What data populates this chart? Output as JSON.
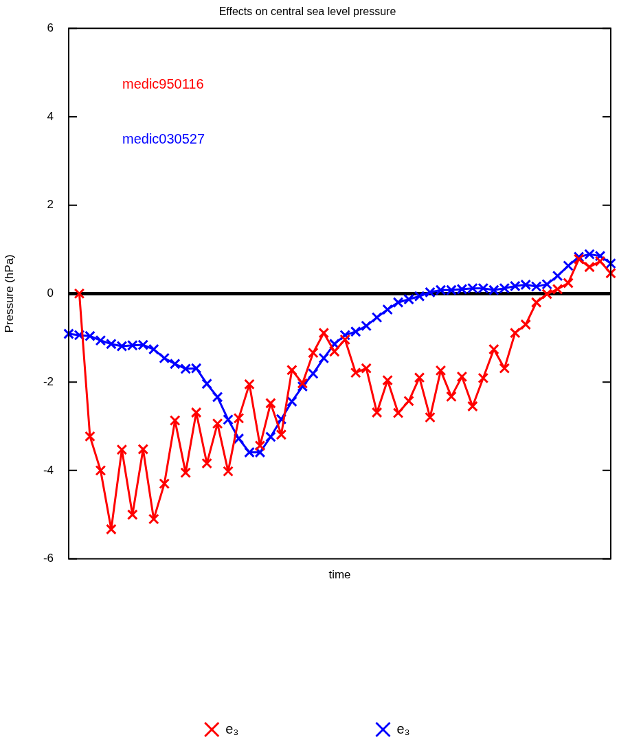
{
  "chart_data": {
    "type": "line",
    "title": "Effects on central sea level pressure",
    "xlabel": "time",
    "ylabel": "Pressure (hPa)",
    "categories": [
      null,
      null,
      null,
      null,
      null,
      null,
      null,
      null,
      null,
      null,
      null,
      null,
      null,
      null,
      null,
      null,
      null,
      null,
      null,
      null,
      null,
      null,
      null,
      null,
      null,
      null,
      null,
      null,
      null,
      null,
      null,
      null,
      null,
      null,
      null,
      null,
      null,
      null,
      null,
      null,
      null,
      null,
      null,
      null,
      null,
      null,
      null,
      null,
      null,
      null,
      null,
      null
    ],
    "series": [
      {
        "name": "e₃",
        "color": "#ff0000",
        "values": [
          null,
          0,
          -3.23,
          -4.0,
          -5.33,
          -3.53,
          -5.0,
          -3.52,
          -5.1,
          -4.3,
          -2.87,
          -4.05,
          -2.69,
          -3.84,
          -2.94,
          -4.02,
          -2.82,
          -2.05,
          -3.44,
          -2.48,
          -3.19,
          -1.73,
          -2.03,
          -1.34,
          -0.89,
          -1.31,
          -1.04,
          -1.79,
          -1.69,
          -2.69,
          -1.96,
          -2.7,
          -2.43,
          -1.9,
          -2.8,
          -1.74,
          -2.33,
          -1.88,
          -2.55,
          -1.91,
          -1.26,
          -1.69,
          -0.89,
          -0.7,
          -0.2,
          -0.01,
          0.1,
          0.24,
          0.78,
          0.6,
          0.73,
          0.46
        ]
      },
      {
        "name": "e₃",
        "color": "#0000ff",
        "values": [
          -0.91,
          -0.94,
          -0.96,
          -1.06,
          -1.14,
          -1.19,
          -1.17,
          -1.16,
          -1.26,
          -1.46,
          -1.59,
          -1.7,
          -1.69,
          -2.04,
          -2.34,
          -2.85,
          -3.28,
          -3.59,
          -3.59,
          -3.24,
          -2.84,
          -2.44,
          -2.1,
          -1.81,
          -1.46,
          -1.14,
          -0.94,
          -0.86,
          -0.73,
          -0.54,
          -0.36,
          -0.2,
          -0.13,
          -0.06,
          0.03,
          0.08,
          0.08,
          0.1,
          0.12,
          0.12,
          0.08,
          0.12,
          0.17,
          0.2,
          0.16,
          0.21,
          0.4,
          0.63,
          0.83,
          0.89,
          0.85,
          0.68
        ]
      }
    ],
    "annotations": [
      "medic950116",
      "medic030527"
    ],
    "ylim": [
      -6,
      6
    ],
    "yticks": [
      -6,
      -4,
      -2,
      0,
      2,
      4,
      6
    ],
    "ref_lines": [
      {
        "axis": "y",
        "value": 0,
        "color": "#000000"
      }
    ],
    "tick_labels": "y",
    "legend": "bottom",
    "marker": "cross",
    "line_style": "solid"
  }
}
